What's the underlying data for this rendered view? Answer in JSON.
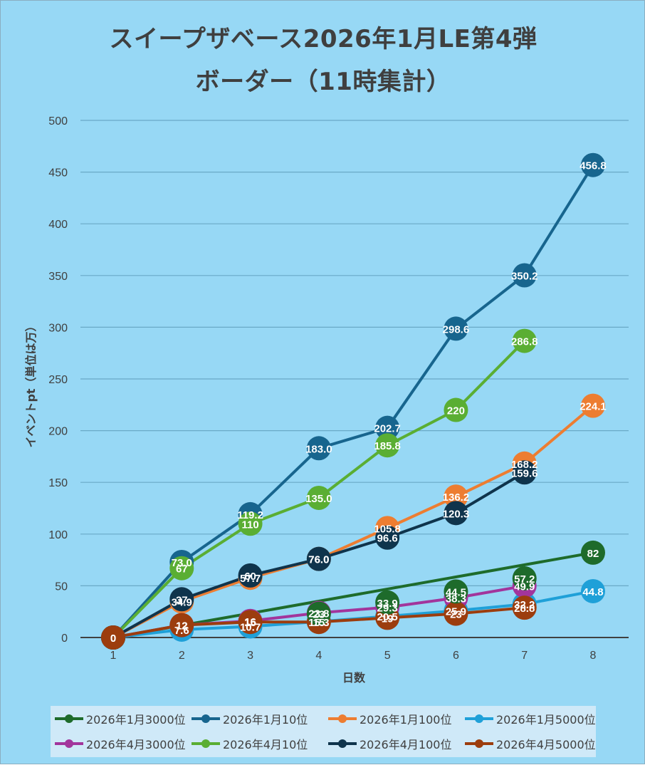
{
  "chart_data": {
    "type": "line",
    "title_line1": "スイープザベース2026年1月LE第4弾",
    "title_line2": "ボーダー（11時集計）",
    "xlabel": "日数",
    "ylabel": "イベントpt（単位は万）",
    "x": [
      1,
      2,
      3,
      4,
      5,
      6,
      7,
      8
    ],
    "ylim": [
      0,
      500
    ],
    "yticks": [
      0,
      50,
      100,
      150,
      200,
      250,
      300,
      350,
      400,
      450,
      500
    ],
    "grid": true,
    "legend_position": "bottom",
    "series": [
      {
        "name": "2026年1月3000位",
        "color": "#1e6b2b",
        "values": [
          0,
          null,
          null,
          null,
          null,
          null,
          null,
          82
        ],
        "labels": [
          "",
          "",
          "",
          "",
          "",
          "",
          "",
          "82"
        ]
      },
      {
        "name": "2026年1月10位",
        "color": "#17658e",
        "values": [
          0,
          73.0,
          119.2,
          183.0,
          202.7,
          298.6,
          350.2,
          456.8
        ],
        "labels": [
          "",
          "73.0",
          "119.2",
          "183.0",
          "202.7",
          "298.6",
          "350.2",
          "456.8"
        ]
      },
      {
        "name": "2026年1月100位",
        "color": "#ed7d31",
        "values": [
          0,
          34.9,
          57.7,
          76.0,
          105.8,
          136.2,
          168.2,
          224.1
        ],
        "labels": [
          "",
          "34.9",
          "57.7",
          "76.0",
          "105.8",
          "136.2",
          "168.2",
          "224.1"
        ]
      },
      {
        "name": "2026年1月5000位",
        "color": "#1fa0d8",
        "values": [
          0,
          7.6,
          10.7,
          15.3,
          20.5,
          25.9,
          32.2,
          44.8
        ],
        "labels": [
          "",
          "7.6",
          "10.7",
          "15.3",
          "20.5",
          "25.9",
          "32.2",
          "44.8"
        ]
      },
      {
        "name": "2026年4月3000位",
        "color": "#a2359c",
        "values": [
          0,
          12,
          16,
          23.8,
          29.3,
          38.3,
          49.9,
          null
        ],
        "labels": [
          "",
          "12",
          "16",
          "23.8",
          "29.3",
          "38.3",
          "49.9",
          ""
        ]
      },
      {
        "name": "2026年4月10位",
        "color": "#5aae33",
        "values": [
          0,
          67,
          110,
          135.0,
          185.8,
          220,
          286.8,
          null
        ],
        "labels": [
          "",
          "67",
          "110",
          "135.0",
          "185.8",
          "220",
          "286.8",
          ""
        ]
      },
      {
        "name": "2026年4月100位",
        "color": "#0f344c",
        "values": [
          0,
          37,
          60,
          76.0,
          96.6,
          120.3,
          159.6,
          null
        ],
        "labels": [
          "0",
          "37",
          "60",
          "76.0",
          "96.6",
          "120.3",
          "159.6",
          ""
        ]
      },
      {
        "name": "2026年4月5000位",
        "color": "#9c3d0e",
        "values": [
          0,
          12,
          15,
          15,
          19,
          23,
          28.8,
          null
        ],
        "labels": [
          "0",
          "12",
          "15",
          "15",
          "19",
          "23",
          "28.8",
          ""
        ]
      }
    ],
    "overlay_points": [
      {
        "series": "2026年1月3000位",
        "values": [
          null,
          null,
          null,
          23,
          33.9,
          44.5,
          57.2,
          null
        ],
        "labels": [
          "",
          "",
          "",
          "23",
          "33.9",
          "44.5",
          "57.2",
          ""
        ]
      }
    ]
  }
}
